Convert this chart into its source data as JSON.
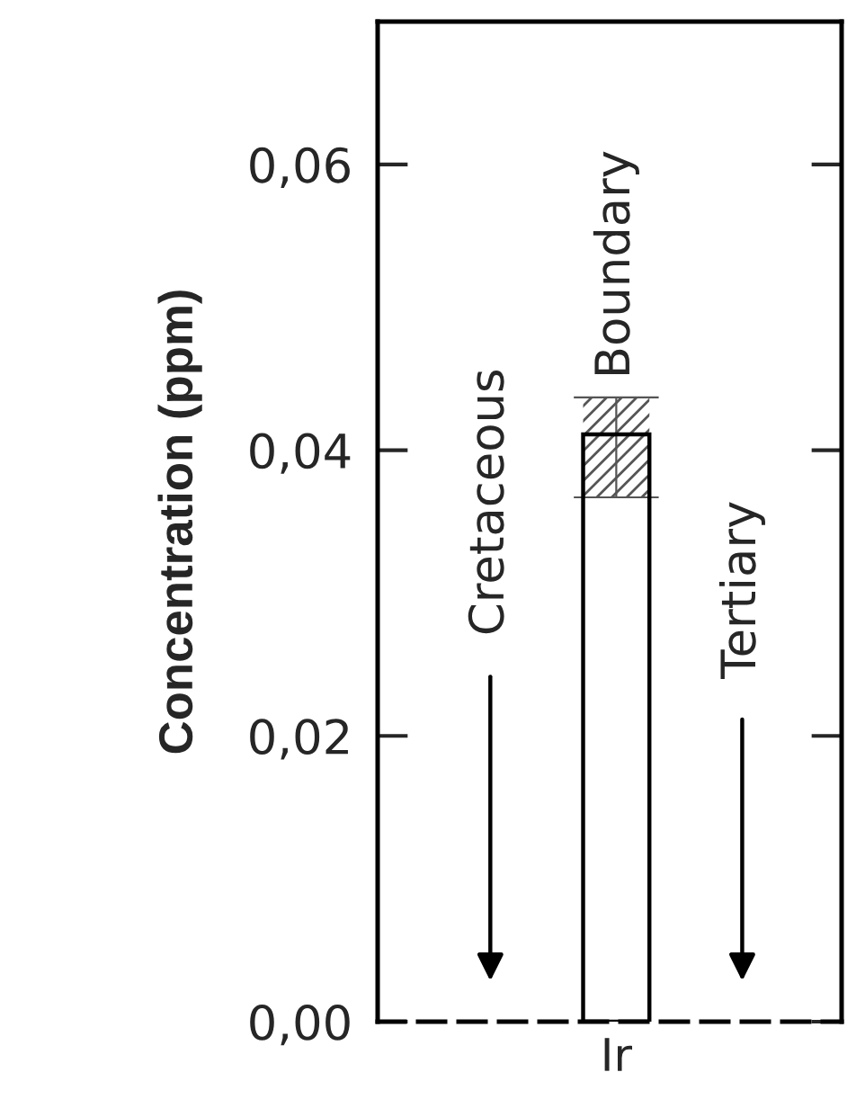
{
  "chart_data": {
    "type": "bar",
    "ylabel": "Concentration (ppm)",
    "categories": [
      "Ir"
    ],
    "values": [
      0.0411
    ],
    "errors": [
      [
        0.0367,
        0.0437
      ]
    ],
    "ylim": [
      0,
      0.07
    ],
    "yticks": [
      {
        "value": 0,
        "label": "0,00"
      },
      {
        "value": 0.02,
        "label": "0,02"
      },
      {
        "value": 0.04,
        "label": "0,04"
      },
      {
        "value": 0.06,
        "label": "0,06"
      }
    ],
    "grid": false,
    "annotations": [
      "Cretaceous",
      "Boundary",
      "Tertiary"
    ]
  }
}
